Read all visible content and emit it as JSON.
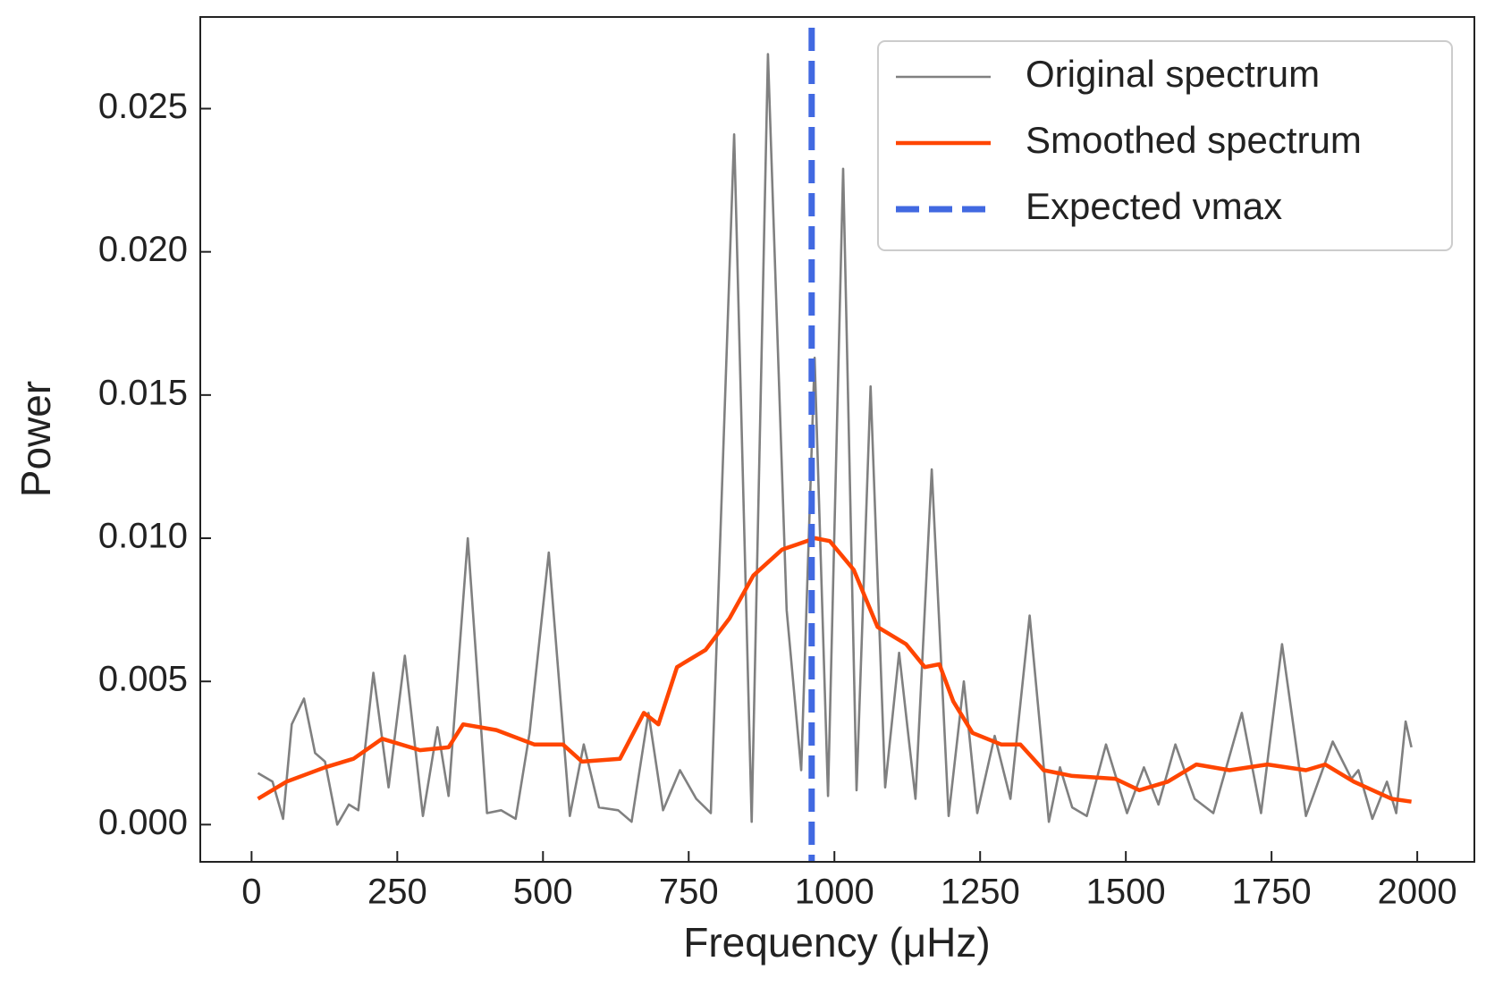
{
  "chart_data": {
    "type": "line",
    "xlabel": "Frequency (μHz)",
    "ylabel": "Power",
    "xlim": [
      -88,
      2098
    ],
    "ylim": [
      -0.0013,
      0.0282
    ],
    "xticks": [
      0,
      250,
      500,
      750,
      1000,
      1250,
      1500,
      1750,
      2000
    ],
    "yticks": [
      {
        "value": 0,
        "label": "0.000"
      },
      {
        "value": 0.005,
        "label": "0.005"
      },
      {
        "value": 0.01,
        "label": "0.010"
      },
      {
        "value": 0.015,
        "label": "0.015"
      },
      {
        "value": 0.02,
        "label": "0.020"
      },
      {
        "value": 0.025,
        "label": "0.025"
      }
    ],
    "legend": "upper right",
    "series": [
      {
        "name": "Original spectrum",
        "color": "#808080",
        "x": [
          11,
          36,
          54,
          69,
          90,
          109,
          126,
          147,
          167,
          183,
          209,
          235,
          263,
          294,
          319,
          338,
          371,
          404,
          428,
          453,
          477,
          510,
          546,
          570,
          596,
          629,
          652,
          681,
          706,
          735,
          763,
          788,
          828,
          858,
          886,
          918,
          943,
          966,
          989,
          1015,
          1038,
          1062,
          1087,
          1111,
          1139,
          1167,
          1196,
          1222,
          1245,
          1275,
          1302,
          1335,
          1368,
          1387,
          1408,
          1433,
          1466,
          1502,
          1531,
          1556,
          1585,
          1618,
          1650,
          1699,
          1732,
          1768,
          1809,
          1855,
          1887,
          1899,
          1923,
          1948,
          1964,
          1980,
          1990
        ],
        "values": [
          0.0018,
          0.0015,
          0.0002,
          0.0035,
          0.0044,
          0.0025,
          0.0022,
          0.0,
          0.0007,
          0.0005,
          0.0053,
          0.0013,
          0.0059,
          0.0003,
          0.0034,
          0.001,
          0.01,
          0.0004,
          0.0005,
          0.0002,
          0.0032,
          0.0095,
          0.0003,
          0.0028,
          0.0006,
          0.0005,
          0.0001,
          0.0039,
          0.0005,
          0.0019,
          0.0009,
          0.0004,
          0.0241,
          0.0001,
          0.0269,
          0.0075,
          0.0019,
          0.0163,
          0.001,
          0.0229,
          0.0012,
          0.0153,
          0.0013,
          0.006,
          0.0009,
          0.0124,
          0.0003,
          0.005,
          0.0004,
          0.0031,
          0.0009,
          0.0073,
          0.0001,
          0.002,
          0.0006,
          0.0003,
          0.0028,
          0.0004,
          0.002,
          0.0007,
          0.0028,
          0.0009,
          0.0004,
          0.0039,
          0.0004,
          0.0063,
          0.0003,
          0.0029,
          0.0016,
          0.0019,
          0.0002,
          0.0015,
          0.0004,
          0.0036,
          0.0027
        ]
      },
      {
        "name": "Smoothed spectrum",
        "color": "#ff4500",
        "x": [
          11,
          60,
          126,
          175,
          224,
          289,
          338,
          363,
          420,
          485,
          534,
          567,
          632,
          673,
          698,
          730,
          779,
          820,
          861,
          910,
          967,
          992,
          1033,
          1074,
          1123,
          1155,
          1180,
          1204,
          1237,
          1286,
          1319,
          1359,
          1408,
          1482,
          1523,
          1572,
          1621,
          1678,
          1743,
          1809,
          1842,
          1891,
          1956,
          1990
        ],
        "values": [
          0.0009,
          0.0015,
          0.002,
          0.0023,
          0.003,
          0.0026,
          0.0027,
          0.0035,
          0.0033,
          0.0028,
          0.0028,
          0.0022,
          0.0023,
          0.0039,
          0.0035,
          0.0055,
          0.0061,
          0.0072,
          0.0087,
          0.0096,
          0.01,
          0.0099,
          0.0089,
          0.0069,
          0.0063,
          0.0055,
          0.0056,
          0.0043,
          0.0032,
          0.0028,
          0.0028,
          0.0019,
          0.0017,
          0.0016,
          0.0012,
          0.0015,
          0.0021,
          0.0019,
          0.0021,
          0.0019,
          0.0021,
          0.0015,
          0.0009,
          0.0008
        ]
      }
    ],
    "vline": {
      "name": "Expected νmax",
      "color": "#4169e1",
      "x": 961
    }
  }
}
